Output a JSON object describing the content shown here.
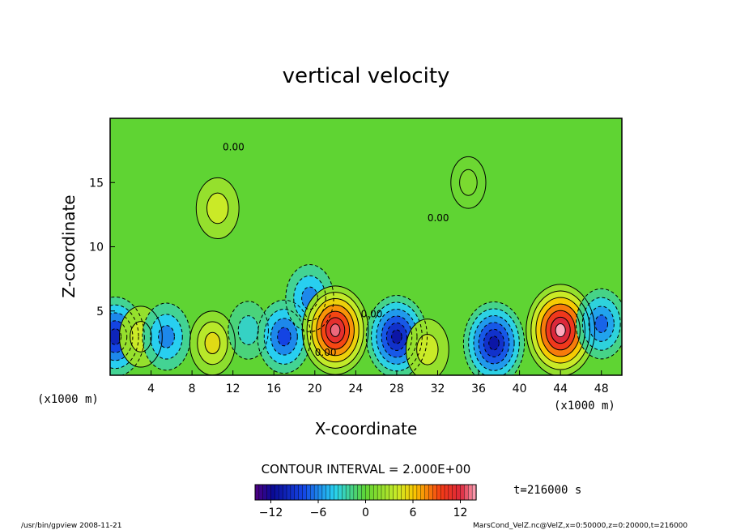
{
  "chart_data": {
    "type": "heatmap",
    "title": "vertical velocity",
    "xlabel": "X-coordinate",
    "ylabel": "Z-coordinate",
    "x_unit_left": "(x1000 m)",
    "x_unit_right": "(x1000 m)",
    "xlim": [
      0,
      50
    ],
    "ylim": [
      0,
      20
    ],
    "x_ticks": [
      "4",
      "8",
      "12",
      "16",
      "20",
      "24",
      "28",
      "32",
      "36",
      "40",
      "44",
      "48"
    ],
    "y_ticks": [
      "5",
      "10",
      "15"
    ],
    "contour_interval_text": "CONTOUR INTERVAL = 2.000E+00",
    "contour_label": "0.00",
    "time_text": "t=216000 s",
    "colorbar": {
      "min": -14,
      "max": 14,
      "ticks": [
        "−12",
        "−6",
        "0",
        "6",
        "12"
      ]
    },
    "cells": [
      {
        "x": 0.5,
        "z": 3,
        "w": -10
      },
      {
        "x": 3,
        "z": 3,
        "w": 4
      },
      {
        "x": 5.5,
        "z": 3,
        "w": -6
      },
      {
        "x": 10,
        "z": 2.5,
        "w": 5
      },
      {
        "x": 13.5,
        "z": 3.5,
        "w": -3
      },
      {
        "x": 17,
        "z": 3,
        "w": -8
      },
      {
        "x": 19.5,
        "z": 6,
        "w": -6
      },
      {
        "x": 22,
        "z": 3.5,
        "w": 13
      },
      {
        "x": 28,
        "z": 3,
        "w": -11
      },
      {
        "x": 31,
        "z": 2,
        "w": 4
      },
      {
        "x": 37.5,
        "z": 2.5,
        "w": -11
      },
      {
        "x": 44,
        "z": 3.5,
        "w": 14
      },
      {
        "x": 48,
        "z": 4,
        "w": -7
      },
      {
        "x": 10.5,
        "z": 13,
        "w": 4
      },
      {
        "x": 35,
        "z": 15,
        "w": 1
      }
    ]
  },
  "footer": {
    "left": "/usr/bin/gpview   2008-11-21",
    "right": "MarsCond_VelZ.nc@VelZ,x=0:50000,z=0:20000,t=216000"
  }
}
